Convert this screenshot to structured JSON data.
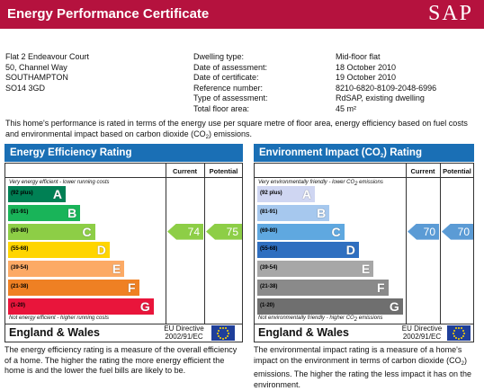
{
  "header": {
    "title": "Energy Performance Certificate",
    "logo": "SAP"
  },
  "property": {
    "address": [
      "Flat 2 Endeavour Court",
      "50, Channel Way",
      "SOUTHAMPTON",
      "SO14 3GD"
    ],
    "details": [
      {
        "label": "Dwelling type:",
        "value": "Mid-floor flat"
      },
      {
        "label": "Date of assessment:",
        "value": "18 October 2010"
      },
      {
        "label": "Date of certificate:",
        "value": "19 October 2010"
      },
      {
        "label": "Reference number:",
        "value": "8210-6820-8109-2048-6996"
      },
      {
        "label": "Type of assessment:",
        "value": "RdSAP, existing dwelling"
      },
      {
        "label": "Total floor area:",
        "value": "45 m²"
      }
    ]
  },
  "intro": [
    "This home's performance is rated in terms of the energy use per square metre of floor area, energy efficiency based on fuel costs and environmental impact based on carbon dioxide (CO",
    "2",
    ") emissions."
  ],
  "panels": [
    {
      "title": [
        "Energy Efficiency Rating"
      ],
      "col_current": "Current",
      "col_potential": "Potential",
      "top_note": [
        "Very energy efficient - lower running costs"
      ],
      "bottom_note": [
        "Not energy efficient - higher running costs"
      ],
      "bands": [
        {
          "range": "(92 plus)",
          "letter": "A"
        },
        {
          "range": "(81-91)",
          "letter": "B"
        },
        {
          "range": "(69-80)",
          "letter": "C"
        },
        {
          "range": "(55-68)",
          "letter": "D"
        },
        {
          "range": "(39-54)",
          "letter": "E"
        },
        {
          "range": "(21-38)",
          "letter": "F"
        },
        {
          "range": "(1-20)",
          "letter": "G"
        }
      ],
      "current": "74",
      "potential": "75",
      "region": "England & Wales",
      "directive": [
        "EU Directive",
        "2002/91/EC"
      ],
      "description": [
        "The energy efficiency rating is a measure of the overall efficiency of a home. The higher the rating the more energy efficient the home is and the lower the fuel bills are likely to be."
      ]
    },
    {
      "title": [
        "Environment Impact (CO",
        "2",
        ") Rating"
      ],
      "col_current": "Current",
      "col_potential": "Potential",
      "top_note": [
        "Very environmentally friendly - lower CO",
        "2",
        " emissions"
      ],
      "bottom_note": [
        "Not environmentally friendly - higher CO",
        "2",
        " emissions"
      ],
      "bands": [
        {
          "range": "(92 plus)",
          "letter": "A"
        },
        {
          "range": "(81-91)",
          "letter": "B"
        },
        {
          "range": "(69-80)",
          "letter": "C"
        },
        {
          "range": "(55-68)",
          "letter": "D"
        },
        {
          "range": "(39-54)",
          "letter": "E"
        },
        {
          "range": "(21-38)",
          "letter": "F"
        },
        {
          "range": "(1-20)",
          "letter": "G"
        }
      ],
      "current": "70",
      "potential": "70",
      "region": "England & Wales",
      "directive": [
        "EU Directive",
        "2002/91/EC"
      ],
      "description": [
        "The environmental impact rating is a measure of a home's impact on the environment in terms of carbon dioxide (CO",
        "2",
        ") emissions. The higher the rating the less impact it has on the environment."
      ]
    }
  ]
}
